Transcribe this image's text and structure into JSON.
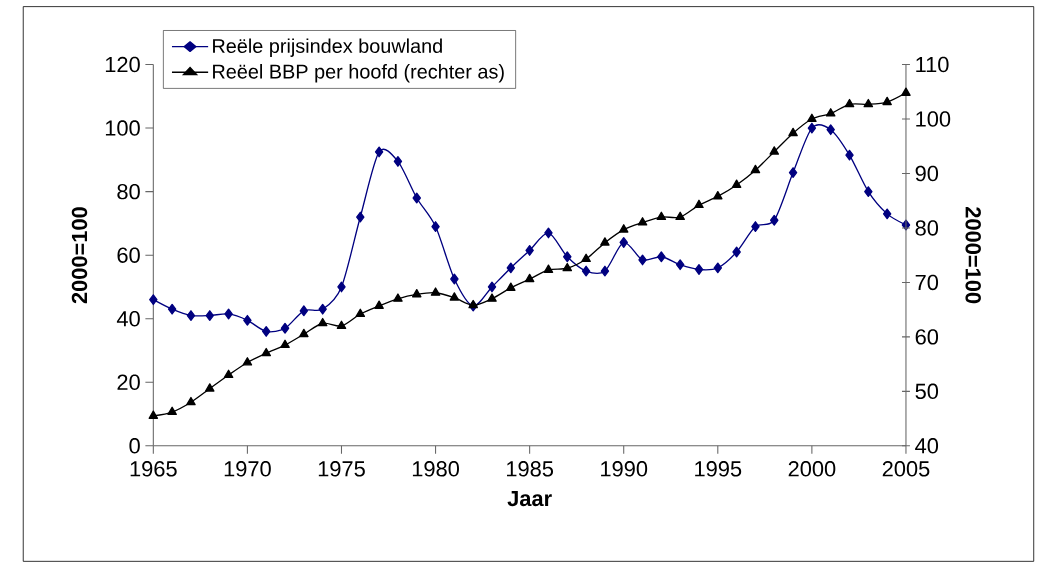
{
  "chart_data": {
    "type": "line",
    "xlabel": "Jaar",
    "ylabel": "2000=100",
    "y2label": "2000=100",
    "x": [
      1965,
      1966,
      1967,
      1968,
      1969,
      1970,
      1971,
      1972,
      1973,
      1974,
      1975,
      1976,
      1977,
      1978,
      1979,
      1980,
      1981,
      1982,
      1983,
      1984,
      1985,
      1986,
      1987,
      1988,
      1989,
      1990,
      1991,
      1992,
      1993,
      1994,
      1995,
      1996,
      1997,
      1998,
      1999,
      2000,
      2001,
      2002,
      2003,
      2004,
      2005
    ],
    "series": [
      {
        "name": "Reële prijsindex bouwland",
        "color": "#000080",
        "marker": "diamond",
        "values": [
          46,
          43,
          41,
          41,
          41.5,
          39.5,
          36,
          37,
          42.5,
          43,
          50,
          72,
          92.5,
          89.5,
          78,
          69,
          52.5,
          44,
          50,
          56,
          61.5,
          67,
          59.5,
          55,
          55,
          64,
          58.5,
          59.5,
          57,
          55.5,
          56,
          61,
          69,
          71,
          86,
          100,
          99.5,
          91.5,
          80,
          73,
          69.5
        ]
      },
      {
        "name": "Reëel BBP per hoofd (rechter as)",
        "color": "#000000",
        "marker": "triangle",
        "axis": "y2",
        "values": [
          45.5,
          46.2,
          48,
          50.5,
          53,
          55.3,
          57,
          58.5,
          60.5,
          62.5,
          62,
          64.2,
          65.7,
          67,
          67.8,
          68.1,
          67.2,
          65.8,
          67,
          69,
          70.6,
          72.3,
          72.6,
          74.3,
          77.3,
          79.7,
          81,
          82,
          82,
          84.2,
          85.8,
          87.9,
          90.6,
          94,
          97.4,
          100,
          101,
          102.7,
          102.7,
          103.1,
          104.8
        ]
      }
    ],
    "xlim": [
      1965,
      2005
    ],
    "xticks": [
      1965,
      1970,
      1975,
      1980,
      1985,
      1990,
      1995,
      2000,
      2005
    ],
    "ylim": [
      0,
      120
    ],
    "yticks": [
      0,
      20,
      40,
      60,
      80,
      100,
      120
    ],
    "y2lim": [
      40,
      110
    ],
    "y2ticks": [
      40,
      50,
      60,
      70,
      80,
      90,
      100,
      110
    ],
    "grid": false,
    "legend": "top left"
  }
}
